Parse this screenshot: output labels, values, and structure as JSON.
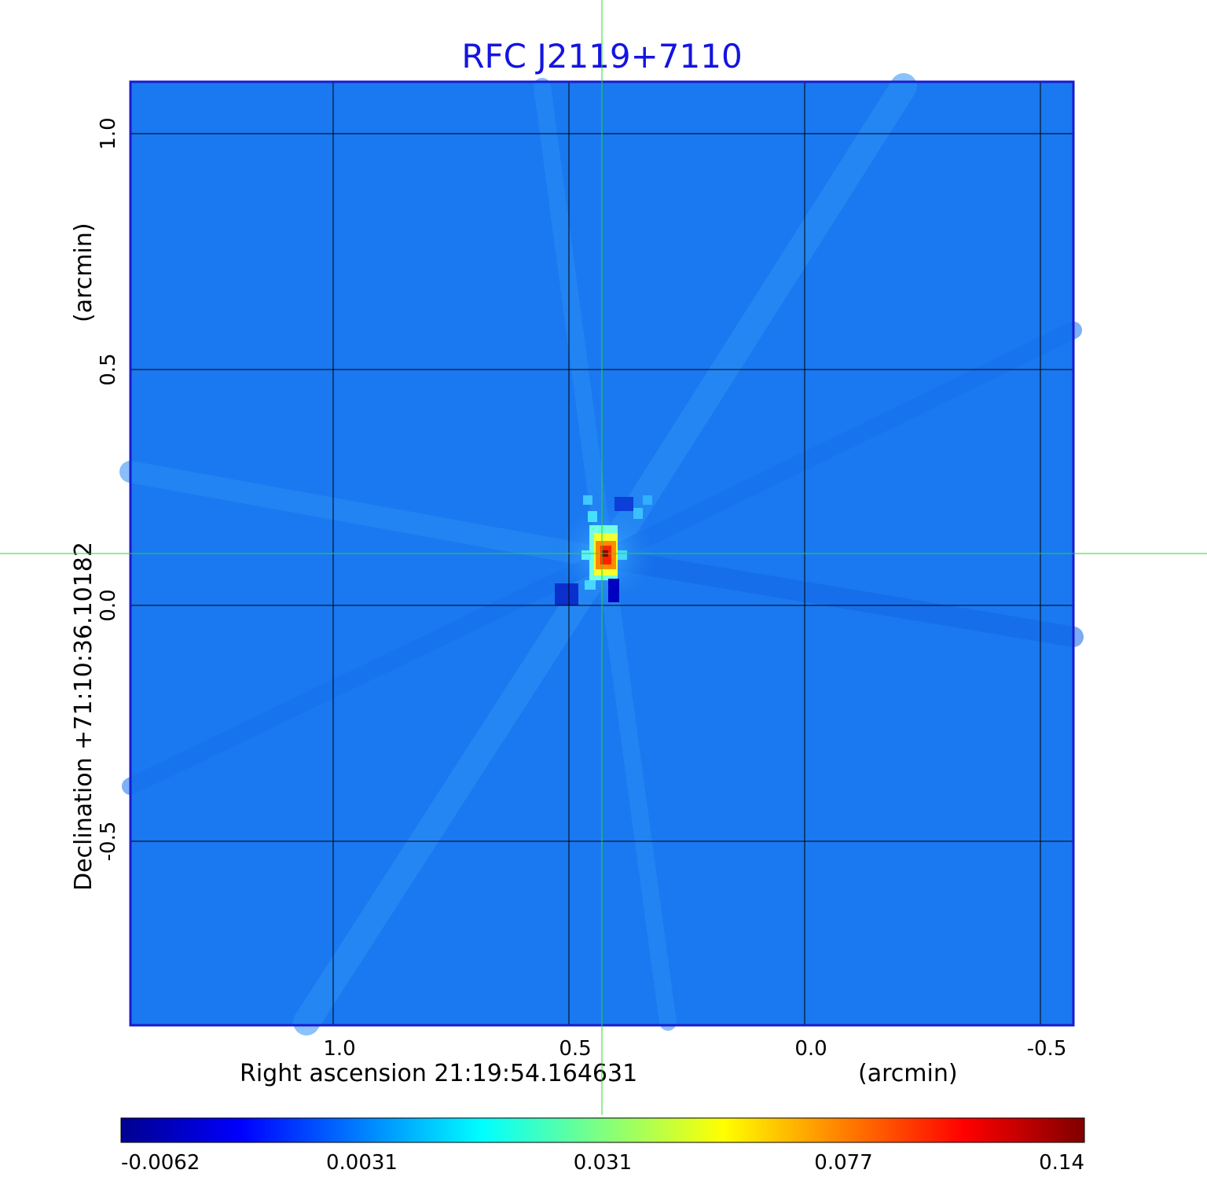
{
  "chart_data": {
    "type": "heatmap",
    "title": "RFC J2119+7110",
    "xlabel": "Right ascension  21:19:54.164631",
    "xlabel_unit": "(arcmin)",
    "ylabel": "Declination  +71:10:36.10182",
    "ylabel_unit": "(arcmin)",
    "x_ticks": [
      1.0,
      0.5,
      0.0,
      -0.5
    ],
    "x_tick_labels": [
      "1.0",
      "0.5",
      "0.0",
      "-0.5"
    ],
    "y_ticks": [
      1.0,
      0.5,
      0.0,
      -0.5
    ],
    "y_tick_labels": [
      "1.0",
      "0.5",
      "0.0",
      "-0.5"
    ],
    "xlim": [
      1.43,
      -0.57
    ],
    "ylim": [
      -0.89,
      1.11
    ],
    "grid": true,
    "colorbar": {
      "colormap": "jet",
      "tick_labels": [
        "-0.0062",
        "0.0031",
        "0.031",
        "0.077",
        "0.14"
      ],
      "tick_values": [
        -0.0062,
        0.0031,
        0.031,
        0.077,
        0.14
      ]
    },
    "source": {
      "x": 0.43,
      "y": 0.11,
      "peak": 0.14
    },
    "crosshair": {
      "x": 0.43,
      "y": 0.11
    },
    "colors": {
      "title": "#1414e0",
      "crosshair": "#22dd22",
      "frame": "#1a1ad0",
      "background_map": "#1a78f0"
    }
  }
}
